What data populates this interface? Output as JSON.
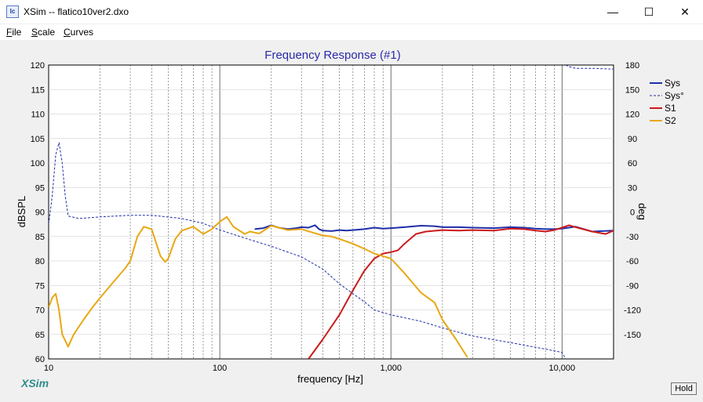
{
  "window": {
    "title": "XSim -- flatico10ver2.dxo",
    "icon": "xsim-app-icon",
    "controls": {
      "minimize": "—",
      "maximize": "☐",
      "close": "✕"
    }
  },
  "menu": [
    {
      "key": "F",
      "rest": "ile"
    },
    {
      "key": "S",
      "rest": "cale"
    },
    {
      "key": "C",
      "rest": "urves"
    }
  ],
  "brand": "XSim",
  "hold_label": "Hold",
  "chart_data": {
    "type": "line",
    "title": "Frequency Response (#1)",
    "xlabel": "frequency [Hz]",
    "ylabel": "dBSPL",
    "y2label": "deg",
    "xscale": "log",
    "xlim": [
      10,
      20000
    ],
    "ylim": [
      60,
      120
    ],
    "y2lim": [
      -180,
      180
    ],
    "xticks": [
      10,
      100,
      1000,
      10000
    ],
    "xtick_labels": [
      "10",
      "100",
      "1,000",
      "10,000"
    ],
    "yticks": [
      60,
      65,
      70,
      75,
      80,
      85,
      90,
      95,
      100,
      105,
      110,
      115,
      120
    ],
    "y2ticks": [
      -150,
      -120,
      -90,
      -60,
      -30,
      0,
      30,
      60,
      90,
      120,
      150,
      180
    ],
    "grid": true,
    "legend_position": "top-right",
    "colors": {
      "title": "#2a2aa8",
      "plot_bg": "#ffffff",
      "panel_bg": "#f0f0f0",
      "brand": "#2e8b8b"
    },
    "series": [
      {
        "name": "Sys",
        "color": "#1f2fa8",
        "axis": "left",
        "style": "solid",
        "width": 2,
        "x": [
          160,
          180,
          200,
          220,
          250,
          280,
          300,
          330,
          360,
          380,
          400,
          450,
          500,
          550,
          600,
          700,
          800,
          900,
          1000,
          1200,
          1500,
          1800,
          2000,
          2500,
          3000,
          4000,
          5000,
          6000,
          7000,
          8000,
          9000,
          10000,
          12000,
          15000,
          20000
        ],
        "y": [
          86.5,
          86.7,
          87.3,
          86.8,
          86.5,
          86.7,
          86.9,
          86.8,
          87.3,
          86.5,
          86.2,
          86.1,
          86.3,
          86.2,
          86.3,
          86.5,
          86.8,
          86.6,
          86.7,
          86.9,
          87.2,
          87.1,
          86.9,
          86.9,
          86.8,
          86.7,
          86.9,
          86.8,
          86.6,
          86.5,
          86.5,
          86.6,
          87.0,
          86.0,
          86.2
        ]
      },
      {
        "name": "Sys°",
        "color": "#1f2fa8",
        "axis": "right",
        "style": "dashed",
        "width": 1,
        "x": [
          10,
          10.5,
          11,
          11.5,
          12,
          12.5,
          13,
          15,
          20,
          30,
          40,
          60,
          80,
          100,
          150,
          200,
          300,
          400,
          500,
          600,
          700,
          800,
          1000,
          1500,
          2000,
          3000,
          5000,
          8000,
          10000,
          10500,
          11000,
          12000,
          15000,
          20000
        ],
        "y": [
          -15,
          20,
          70,
          85,
          60,
          20,
          -5,
          -8,
          -6,
          -4,
          -4,
          -8,
          -14,
          -22,
          -34,
          -42,
          -55,
          -70,
          -88,
          -100,
          -110,
          -120,
          -126,
          -134,
          -142,
          -152,
          -160,
          -168,
          -172,
          180,
          178,
          176,
          176,
          175
        ]
      },
      {
        "name": "S1",
        "color": "#cc1a1a",
        "axis": "left",
        "style": "solid",
        "width": 2,
        "x": [
          330,
          400,
          500,
          600,
          700,
          800,
          900,
          1000,
          1100,
          1200,
          1400,
          1600,
          2000,
          2500,
          3000,
          4000,
          5000,
          6000,
          7000,
          8000,
          9000,
          10000,
          11000,
          12000,
          15000,
          18000,
          20000
        ],
        "y": [
          60,
          64,
          69,
          74,
          78,
          80.5,
          81.5,
          81.8,
          82.2,
          83.5,
          85.5,
          86,
          86.3,
          86.2,
          86.3,
          86.2,
          86.6,
          86.5,
          86.2,
          86,
          86.3,
          86.8,
          87.3,
          86.9,
          86.0,
          85.5,
          86.2
        ]
      },
      {
        "name": "S2",
        "color": "#e8a812",
        "axis": "left",
        "style": "solid",
        "width": 2,
        "x": [
          10,
          10.5,
          11,
          11.5,
          12,
          13,
          14,
          16,
          18,
          20,
          25,
          28,
          30,
          33,
          36,
          40,
          45,
          48,
          50,
          55,
          60,
          70,
          80,
          90,
          100,
          110,
          120,
          140,
          150,
          170,
          200,
          250,
          300,
          350,
          400,
          450,
          500,
          600,
          700,
          800,
          1000,
          1200,
          1500,
          1800,
          2000,
          2400,
          2800
        ],
        "y": [
          70.5,
          72.5,
          73.3,
          70,
          65,
          62.5,
          65,
          68,
          70.5,
          72.5,
          76.5,
          78.5,
          80,
          85,
          87,
          86.5,
          81,
          79.8,
          80.5,
          84.5,
          86.2,
          87,
          85.5,
          86.5,
          88,
          89,
          87,
          85.5,
          86,
          85.6,
          87.2,
          86.3,
          86.5,
          85.8,
          85.2,
          85,
          84.5,
          83.5,
          82.5,
          81.5,
          80.5,
          77.5,
          73.5,
          71.5,
          68,
          64,
          60.3
        ]
      }
    ]
  }
}
